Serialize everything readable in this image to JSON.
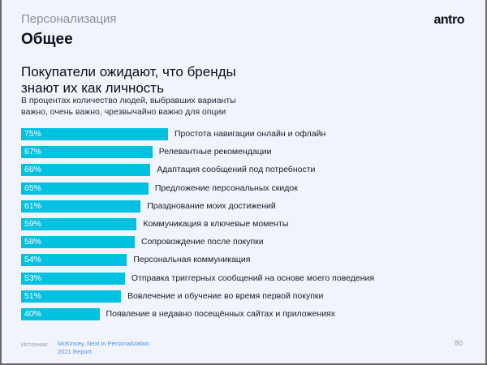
{
  "header": {
    "section": "Персонализация",
    "title": "Общее",
    "logo": "antro"
  },
  "chart_data": {
    "type": "bar",
    "orientation": "horizontal",
    "title": "Покупатели ожидают, что бренды знают их как личность",
    "subtitle": "В процентах количество людей, выбравших варианты важно, очень важно, чрезвычайно важно для опции",
    "categories": [
      "Простота навигации онлайн и офлайн",
      "Релевантные рекомендации",
      "Адаптация сообщений под потребности",
      "Предложение персональных скидок",
      "Празднование моих достижений",
      "Коммуникация в ключевые моменты",
      "Сопровождение после покупки",
      "Персональная коммуникация",
      "Отправка триггерных сообщений на основе моего поведения",
      "Вовлечение и обучение во время первой покупки",
      "Появление в недавно посещённых сайтах и приложениях"
    ],
    "values": [
      75,
      67,
      66,
      65,
      61,
      59,
      58,
      54,
      53,
      51,
      40
    ],
    "value_labels": [
      "75%",
      "67%",
      "66%",
      "65%",
      "61%",
      "59%",
      "58%",
      "54%",
      "53%",
      "51%",
      "40%"
    ],
    "bar_color": "#00c1e0"
  },
  "footer": {
    "source_label": "Источник:",
    "source_line1": "McKinsey, Next in Personalization",
    "source_line2": "2021 Report",
    "page_number": "80"
  }
}
